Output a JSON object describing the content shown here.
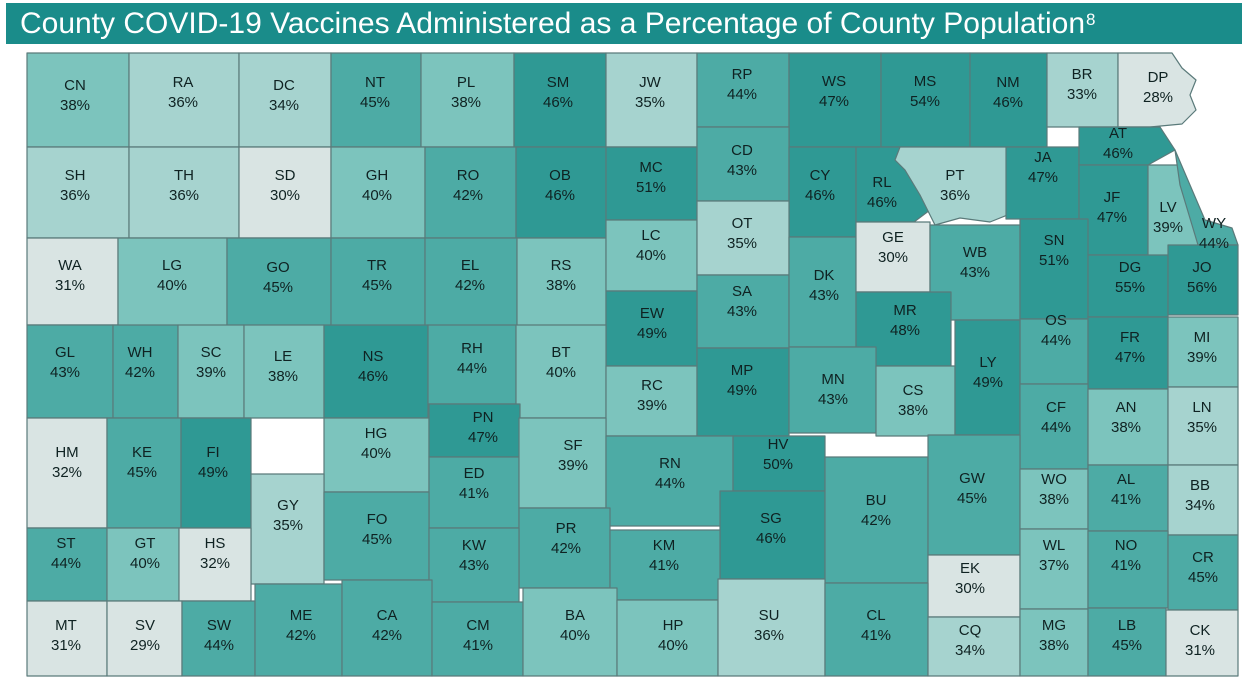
{
  "title": "County COVID-19 Vaccines Administered as a Percentage of County Population",
  "title_superscript": "8",
  "color_scale": [
    "#d9e4e3",
    "#a6d3cf",
    "#7cc4bd",
    "#4daba5",
    "#2f9994"
  ],
  "counties": [
    {
      "code": "CN",
      "pct": "38%",
      "v": 38
    },
    {
      "code": "RA",
      "pct": "36%",
      "v": 36
    },
    {
      "code": "DC",
      "pct": "34%",
      "v": 34
    },
    {
      "code": "NT",
      "pct": "45%",
      "v": 45
    },
    {
      "code": "PL",
      "pct": "38%",
      "v": 38
    },
    {
      "code": "SM",
      "pct": "46%",
      "v": 46
    },
    {
      "code": "JW",
      "pct": "35%",
      "v": 35
    },
    {
      "code": "RP",
      "pct": "44%",
      "v": 44
    },
    {
      "code": "WS",
      "pct": "47%",
      "v": 47
    },
    {
      "code": "MS",
      "pct": "54%",
      "v": 54
    },
    {
      "code": "NM",
      "pct": "46%",
      "v": 46
    },
    {
      "code": "BR",
      "pct": "33%",
      "v": 33
    },
    {
      "code": "DP",
      "pct": "28%",
      "v": 28
    },
    {
      "code": "SH",
      "pct": "36%",
      "v": 36
    },
    {
      "code": "TH",
      "pct": "36%",
      "v": 36
    },
    {
      "code": "SD",
      "pct": "30%",
      "v": 30
    },
    {
      "code": "GH",
      "pct": "40%",
      "v": 40
    },
    {
      "code": "RO",
      "pct": "42%",
      "v": 42
    },
    {
      "code": "OB",
      "pct": "46%",
      "v": 46
    },
    {
      "code": "MC",
      "pct": "51%",
      "v": 51
    },
    {
      "code": "CD",
      "pct": "43%",
      "v": 43
    },
    {
      "code": "CY",
      "pct": "46%",
      "v": 46
    },
    {
      "code": "RL",
      "pct": "46%",
      "v": 46
    },
    {
      "code": "PT",
      "pct": "36%",
      "v": 36
    },
    {
      "code": "JA",
      "pct": "47%",
      "v": 47
    },
    {
      "code": "AT",
      "pct": "46%",
      "v": 46
    },
    {
      "code": "JF",
      "pct": "47%",
      "v": 47
    },
    {
      "code": "LV",
      "pct": "39%",
      "v": 39
    },
    {
      "code": "WY",
      "pct": "44%",
      "v": 44
    },
    {
      "code": "WA",
      "pct": "31%",
      "v": 31
    },
    {
      "code": "LG",
      "pct": "40%",
      "v": 40
    },
    {
      "code": "GO",
      "pct": "45%",
      "v": 45
    },
    {
      "code": "TR",
      "pct": "45%",
      "v": 45
    },
    {
      "code": "EL",
      "pct": "42%",
      "v": 42
    },
    {
      "code": "RS",
      "pct": "38%",
      "v": 38
    },
    {
      "code": "LC",
      "pct": "40%",
      "v": 40
    },
    {
      "code": "OT",
      "pct": "35%",
      "v": 35
    },
    {
      "code": "SA",
      "pct": "43%",
      "v": 43
    },
    {
      "code": "DK",
      "pct": "43%",
      "v": 43
    },
    {
      "code": "GE",
      "pct": "30%",
      "v": 30
    },
    {
      "code": "WB",
      "pct": "43%",
      "v": 43
    },
    {
      "code": "SN",
      "pct": "51%",
      "v": 51
    },
    {
      "code": "DG",
      "pct": "55%",
      "v": 55
    },
    {
      "code": "JO",
      "pct": "56%",
      "v": 56
    },
    {
      "code": "EW",
      "pct": "49%",
      "v": 49
    },
    {
      "code": "MR",
      "pct": "48%",
      "v": 48
    },
    {
      "code": "OS",
      "pct": "44%",
      "v": 44
    },
    {
      "code": "GL",
      "pct": "43%",
      "v": 43
    },
    {
      "code": "WH",
      "pct": "42%",
      "v": 42
    },
    {
      "code": "SC",
      "pct": "39%",
      "v": 39
    },
    {
      "code": "LE",
      "pct": "38%",
      "v": 38
    },
    {
      "code": "NS",
      "pct": "46%",
      "v": 46
    },
    {
      "code": "RH",
      "pct": "44%",
      "v": 44
    },
    {
      "code": "BT",
      "pct": "40%",
      "v": 40
    },
    {
      "code": "RC",
      "pct": "39%",
      "v": 39
    },
    {
      "code": "MP",
      "pct": "49%",
      "v": 49
    },
    {
      "code": "MN",
      "pct": "43%",
      "v": 43
    },
    {
      "code": "CS",
      "pct": "38%",
      "v": 38
    },
    {
      "code": "LY",
      "pct": "49%",
      "v": 49
    },
    {
      "code": "FR",
      "pct": "47%",
      "v": 47
    },
    {
      "code": "MI",
      "pct": "39%",
      "v": 39
    },
    {
      "code": "HM",
      "pct": "32%",
      "v": 32
    },
    {
      "code": "KE",
      "pct": "45%",
      "v": 45
    },
    {
      "code": "FI",
      "pct": "49%",
      "v": 49
    },
    {
      "code": "HG",
      "pct": "40%",
      "v": 40
    },
    {
      "code": "PN",
      "pct": "47%",
      "v": 47
    },
    {
      "code": "ED",
      "pct": "41%",
      "v": 41
    },
    {
      "code": "SF",
      "pct": "39%",
      "v": 39
    },
    {
      "code": "RN",
      "pct": "44%",
      "v": 44
    },
    {
      "code": "HV",
      "pct": "50%",
      "v": 50
    },
    {
      "code": "CF",
      "pct": "44%",
      "v": 44
    },
    {
      "code": "AN",
      "pct": "38%",
      "v": 38
    },
    {
      "code": "LN",
      "pct": "35%",
      "v": 35
    },
    {
      "code": "GY",
      "pct": "35%",
      "v": 35
    },
    {
      "code": "FO",
      "pct": "45%",
      "v": 45
    },
    {
      "code": "PR",
      "pct": "42%",
      "v": 42
    },
    {
      "code": "SG",
      "pct": "46%",
      "v": 46
    },
    {
      "code": "BU",
      "pct": "42%",
      "v": 42
    },
    {
      "code": "GW",
      "pct": "45%",
      "v": 45
    },
    {
      "code": "WO",
      "pct": "38%",
      "v": 38
    },
    {
      "code": "AL",
      "pct": "41%",
      "v": 41
    },
    {
      "code": "BB",
      "pct": "34%",
      "v": 34
    },
    {
      "code": "ST",
      "pct": "44%",
      "v": 44
    },
    {
      "code": "GT",
      "pct": "40%",
      "v": 40
    },
    {
      "code": "HS",
      "pct": "32%",
      "v": 32
    },
    {
      "code": "KW",
      "pct": "43%",
      "v": 43
    },
    {
      "code": "KM",
      "pct": "41%",
      "v": 41
    },
    {
      "code": "EK",
      "pct": "30%",
      "v": 30
    },
    {
      "code": "WL",
      "pct": "37%",
      "v": 37
    },
    {
      "code": "NO",
      "pct": "41%",
      "v": 41
    },
    {
      "code": "CR",
      "pct": "45%",
      "v": 45
    },
    {
      "code": "MT",
      "pct": "31%",
      "v": 31
    },
    {
      "code": "SV",
      "pct": "29%",
      "v": 29
    },
    {
      "code": "SW",
      "pct": "44%",
      "v": 44
    },
    {
      "code": "ME",
      "pct": "42%",
      "v": 42
    },
    {
      "code": "CA",
      "pct": "42%",
      "v": 42
    },
    {
      "code": "CM",
      "pct": "41%",
      "v": 41
    },
    {
      "code": "BA",
      "pct": "40%",
      "v": 40
    },
    {
      "code": "HP",
      "pct": "40%",
      "v": 40
    },
    {
      "code": "SU",
      "pct": "36%",
      "v": 36
    },
    {
      "code": "CL",
      "pct": "41%",
      "v": 41
    },
    {
      "code": "CQ",
      "pct": "34%",
      "v": 34
    },
    {
      "code": "MG",
      "pct": "38%",
      "v": 38
    },
    {
      "code": "LB",
      "pct": "45%",
      "v": 45
    },
    {
      "code": "CK",
      "pct": "31%",
      "v": 31
    }
  ]
}
